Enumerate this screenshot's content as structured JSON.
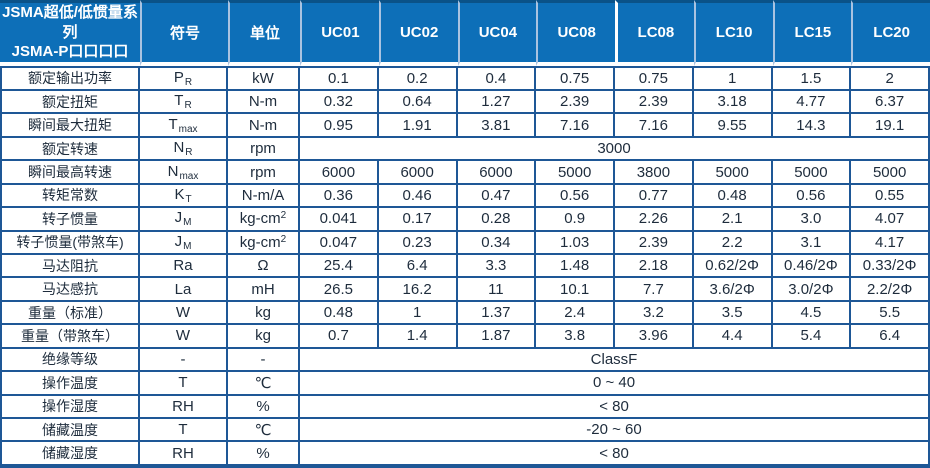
{
  "table": {
    "title_line1": "JSMA超低/低惯量系列",
    "title_line2": "JSMA-P口口口口",
    "col_symbol": "符号",
    "col_unit": "单位",
    "models": [
      "UC01",
      "UC02",
      "UC04",
      "UC08",
      "LC08",
      "LC10",
      "LC15",
      "LC20"
    ],
    "rows": [
      {
        "label": "额定输出功率",
        "sym": "P",
        "sub": "R",
        "unit": "kW",
        "values": [
          "0.1",
          "0.2",
          "0.4",
          "0.75",
          "0.75",
          "1",
          "1.5",
          "2"
        ]
      },
      {
        "label": "额定扭矩",
        "sym": "T",
        "sub": "R",
        "unit": "N-m",
        "values": [
          "0.32",
          "0.64",
          "1.27",
          "2.39",
          "2.39",
          "3.18",
          "4.77",
          "6.37"
        ]
      },
      {
        "label": "瞬间最大扭矩",
        "sym": "T",
        "sub": "max",
        "unit": "N-m",
        "values": [
          "0.95",
          "1.91",
          "3.81",
          "7.16",
          "7.16",
          "9.55",
          "14.3",
          "19.1"
        ]
      },
      {
        "label": "额定转速",
        "sym": "N",
        "sub": "R",
        "unit": "rpm",
        "span": "3000"
      },
      {
        "label": "瞬间最高转速",
        "sym": "N",
        "sub": "max",
        "unit": "rpm",
        "values": [
          "6000",
          "6000",
          "6000",
          "5000",
          "3800",
          "5000",
          "5000",
          "5000"
        ]
      },
      {
        "label": "转矩常数",
        "sym": "K",
        "sub": "T",
        "unit": "N-m/A",
        "values": [
          "0.36",
          "0.46",
          "0.47",
          "0.56",
          "0.77",
          "0.48",
          "0.56",
          "0.55"
        ]
      },
      {
        "label": "转子惯量",
        "sym": "J",
        "sub": "M",
        "unit": "kg-cm",
        "unit_sup": "2",
        "values": [
          "0.041",
          "0.17",
          "0.28",
          "0.9",
          "2.26",
          "2.1",
          "3.0",
          "4.07"
        ]
      },
      {
        "label": "转子惯量(带煞车)",
        "sym": "J",
        "sub": "M",
        "unit": "kg-cm",
        "unit_sup": "2",
        "values": [
          "0.047",
          "0.23",
          "0.34",
          "1.03",
          "2.39",
          "2.2",
          "3.1",
          "4.17"
        ]
      },
      {
        "label": "马达阻抗",
        "sym": "Ra",
        "unit": "Ω",
        "values": [
          "25.4",
          "6.4",
          "3.3",
          "1.48",
          "2.18",
          "0.62/2Φ",
          "0.46/2Φ",
          "0.33/2Φ"
        ]
      },
      {
        "label": "马达感抗",
        "sym": "La",
        "unit": "mH",
        "values": [
          "26.5",
          "16.2",
          "11",
          "10.1",
          "7.7",
          "3.6/2Φ",
          "3.0/2Φ",
          "2.2/2Φ"
        ]
      },
      {
        "label": "重量（标准）",
        "sym": "W",
        "unit": "kg",
        "values": [
          "0.48",
          "1",
          "1.37",
          "2.4",
          "3.2",
          "3.5",
          "4.5",
          "5.5"
        ]
      },
      {
        "label": "重量（带煞车）",
        "sym": "W",
        "unit": "kg",
        "values": [
          "0.7",
          "1.4",
          "1.87",
          "3.8",
          "3.96",
          "4.4",
          "5.4",
          "6.4"
        ]
      },
      {
        "label": "绝缘等级",
        "sym": "-",
        "unit": "-",
        "span": "ClassF"
      },
      {
        "label": "操作温度",
        "sym": "T",
        "unit": "℃",
        "span": "0 ~ 40"
      },
      {
        "label": "操作湿度",
        "sym": "RH",
        "unit": "%",
        "span": "< 80"
      },
      {
        "label": "储藏温度",
        "sym": "T",
        "unit": "℃",
        "span": "-20 ~ 60"
      },
      {
        "label": "储藏湿度",
        "sym": "RH",
        "unit": "%",
        "span": "< 80"
      }
    ]
  },
  "colors": {
    "header_bg": "#0d6fb8",
    "header_top": "#0a5288",
    "header_divider": "#a9c3e1",
    "header_divider_strong": "#ffffff",
    "border": "#1e5796",
    "text": "#1e2c3c",
    "header_text": "#ffffff"
  }
}
